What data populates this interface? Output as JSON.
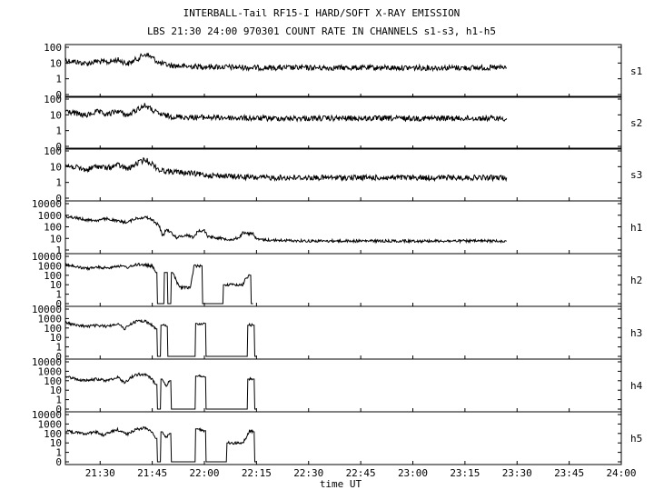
{
  "title": "INTERBALL-Tail RF15-I HARD/SOFT X-RAY EMISSION",
  "subtitle": "LBS 21:30 24:00 970301  COUNT RATE IN CHANNELS s1-s3, h1-h5",
  "xlabel": "time UT",
  "chart_data": {
    "type": "line",
    "title": "INTERBALL-Tail RF15-I HARD/SOFT X-RAY EMISSION",
    "subtitle": "LBS 21:30 24:00 970301  COUNT RATE IN CHANNELS s1-s3, h1-h5",
    "xlabel": "time UT",
    "xlim": [
      "21:20",
      "24:00"
    ],
    "x_ticks": [
      "21:30",
      "21:45",
      "22:00",
      "22:15",
      "22:30",
      "22:45",
      "23:00",
      "23:15",
      "23:30",
      "23:45",
      "24:00"
    ],
    "yscale": "log",
    "line_color": "#000000",
    "grid": false,
    "series": [
      {
        "name": "s1",
        "y_ticks": [
          "100",
          "10",
          "1",
          "0"
        ],
        "points": [
          [
            "21:20",
            15
          ],
          [
            "21:23",
            12
          ],
          [
            "21:26",
            9
          ],
          [
            "21:29",
            13
          ],
          [
            "21:32",
            11
          ],
          [
            "21:35",
            16
          ],
          [
            "21:38",
            9
          ],
          [
            "21:41",
            20
          ],
          [
            "21:43",
            38
          ],
          [
            "21:45",
            22
          ],
          [
            "21:47",
            10
          ],
          [
            "21:50",
            7
          ],
          [
            "21:55",
            6
          ],
          [
            "22:00",
            6
          ],
          [
            "22:15",
            5
          ],
          [
            "22:30",
            5
          ],
          [
            "22:45",
            5
          ],
          [
            "23:00",
            5
          ],
          [
            "23:15",
            5
          ],
          [
            "23:27",
            5
          ]
        ]
      },
      {
        "name": "s2",
        "y_ticks": [
          "100",
          "10",
          "1",
          "0"
        ],
        "points": [
          [
            "21:20",
            18
          ],
          [
            "21:23",
            12
          ],
          [
            "21:26",
            9
          ],
          [
            "21:29",
            16
          ],
          [
            "21:32",
            10
          ],
          [
            "21:35",
            18
          ],
          [
            "21:38",
            9
          ],
          [
            "21:41",
            25
          ],
          [
            "21:43",
            40
          ],
          [
            "21:45",
            20
          ],
          [
            "21:47",
            11
          ],
          [
            "21:50",
            8
          ],
          [
            "21:55",
            7
          ],
          [
            "22:00",
            7
          ],
          [
            "22:15",
            6
          ],
          [
            "22:30",
            6
          ],
          [
            "22:45",
            6
          ],
          [
            "23:00",
            6
          ],
          [
            "23:15",
            6
          ],
          [
            "23:27",
            6
          ]
        ]
      },
      {
        "name": "s3",
        "y_ticks": [
          "100",
          "10",
          "1",
          "0"
        ],
        "points": [
          [
            "21:20",
            12
          ],
          [
            "21:23",
            9
          ],
          [
            "21:26",
            6
          ],
          [
            "21:29",
            11
          ],
          [
            "21:32",
            8
          ],
          [
            "21:35",
            13
          ],
          [
            "21:38",
            7
          ],
          [
            "21:41",
            18
          ],
          [
            "21:43",
            28
          ],
          [
            "21:45",
            15
          ],
          [
            "21:47",
            6
          ],
          [
            "21:50",
            5
          ],
          [
            "21:55",
            4
          ],
          [
            "22:00",
            3
          ],
          [
            "22:15",
            2
          ],
          [
            "22:30",
            2
          ],
          [
            "22:45",
            2
          ],
          [
            "23:00",
            2
          ],
          [
            "23:15",
            2
          ],
          [
            "23:27",
            2
          ]
        ]
      },
      {
        "name": "h1",
        "y_ticks": [
          "10000",
          "1000",
          "100",
          "10",
          "1"
        ],
        "points": [
          [
            "21:20",
            800
          ],
          [
            "21:23",
            600
          ],
          [
            "21:26",
            400
          ],
          [
            "21:29",
            350
          ],
          [
            "21:32",
            500
          ],
          [
            "21:35",
            300
          ],
          [
            "21:38",
            250
          ],
          [
            "21:40",
            500
          ],
          [
            "21:43",
            700
          ],
          [
            "21:45",
            400
          ],
          [
            "21:47",
            120
          ],
          [
            "21:48",
            15
          ],
          [
            "21:49",
            60
          ],
          [
            "21:50",
            40
          ],
          [
            "21:52",
            12
          ],
          [
            "21:55",
            20
          ],
          [
            "21:57",
            12
          ],
          [
            "21:58",
            40
          ],
          [
            "22:00",
            50
          ],
          [
            "22:01",
            15
          ],
          [
            "22:05",
            10
          ],
          [
            "22:08",
            8
          ],
          [
            "22:10",
            12
          ],
          [
            "22:11",
            30
          ],
          [
            "22:13",
            25
          ],
          [
            "22:14",
            30
          ],
          [
            "22:15",
            8
          ],
          [
            "22:20",
            7
          ],
          [
            "22:30",
            6
          ],
          [
            "22:45",
            6
          ],
          [
            "23:00",
            6
          ],
          [
            "23:15",
            6
          ],
          [
            "23:27",
            6
          ]
        ]
      },
      {
        "name": "h2",
        "y_ticks": [
          "10000",
          "1000",
          "100",
          "10",
          "1",
          "0"
        ],
        "points": [
          [
            "21:20",
            1500
          ],
          [
            "21:23",
            800
          ],
          [
            "21:26",
            500
          ],
          [
            "21:29",
            700
          ],
          [
            "21:32",
            600
          ],
          [
            "21:35",
            1000
          ],
          [
            "21:38",
            700
          ],
          [
            "21:41",
            1500
          ],
          [
            "21:43",
            1200
          ],
          [
            "21:45",
            900
          ],
          [
            "21:46",
            200
          ],
          [
            "21:47",
            0
          ],
          [
            "21:48",
            0
          ],
          [
            "21:49",
            200
          ],
          [
            "21:50",
            0
          ],
          [
            "21:51",
            200
          ],
          [
            "21:52",
            20
          ],
          [
            "21:53",
            5
          ],
          [
            "21:56",
            5
          ],
          [
            "21:57",
            1000
          ],
          [
            "21:59",
            1000
          ],
          [
            "22:00",
            0
          ],
          [
            "22:05",
            0
          ],
          [
            "22:06",
            10
          ],
          [
            "22:11",
            10
          ],
          [
            "22:12",
            50
          ],
          [
            "22:13",
            100
          ],
          [
            "22:14",
            0
          ]
        ]
      },
      {
        "name": "h3",
        "y_ticks": [
          "10000",
          "1000",
          "100",
          "10",
          "1",
          "0"
        ],
        "points": [
          [
            "21:20",
            400
          ],
          [
            "21:23",
            200
          ],
          [
            "21:26",
            150
          ],
          [
            "21:29",
            180
          ],
          [
            "21:32",
            150
          ],
          [
            "21:35",
            300
          ],
          [
            "21:37",
            80
          ],
          [
            "21:39",
            300
          ],
          [
            "21:41",
            600
          ],
          [
            "21:43",
            500
          ],
          [
            "21:45",
            200
          ],
          [
            "21:46",
            80
          ],
          [
            "21:47",
            0
          ],
          [
            "21:48",
            200
          ],
          [
            "21:49",
            150
          ],
          [
            "21:50",
            0
          ],
          [
            "21:57",
            0
          ],
          [
            "21:58",
            300
          ],
          [
            "22:00",
            300
          ],
          [
            "22:01",
            0
          ],
          [
            "22:12",
            0
          ],
          [
            "22:13",
            200
          ],
          [
            "22:14",
            200
          ],
          [
            "22:15",
            0
          ]
        ]
      },
      {
        "name": "h4",
        "y_ticks": [
          "10000",
          "1000",
          "100",
          "10",
          "1",
          "0"
        ],
        "points": [
          [
            "21:20",
            300
          ],
          [
            "21:23",
            150
          ],
          [
            "21:26",
            100
          ],
          [
            "21:29",
            150
          ],
          [
            "21:32",
            100
          ],
          [
            "21:35",
            250
          ],
          [
            "21:37",
            60
          ],
          [
            "21:39",
            250
          ],
          [
            "21:41",
            500
          ],
          [
            "21:43",
            400
          ],
          [
            "21:45",
            150
          ],
          [
            "21:46",
            40
          ],
          [
            "21:47",
            0
          ],
          [
            "21:48",
            150
          ],
          [
            "21:49",
            30
          ],
          [
            "21:50",
            100
          ],
          [
            "21:51",
            0
          ],
          [
            "21:57",
            0
          ],
          [
            "21:58",
            300
          ],
          [
            "22:00",
            250
          ],
          [
            "22:01",
            0
          ],
          [
            "22:12",
            0
          ],
          [
            "22:13",
            150
          ],
          [
            "22:14",
            150
          ],
          [
            "22:15",
            0
          ]
        ]
      },
      {
        "name": "h5",
        "y_ticks": [
          "10000",
          "1000",
          "100",
          "10",
          "1",
          "0"
        ],
        "points": [
          [
            "21:20",
            200
          ],
          [
            "21:23",
            120
          ],
          [
            "21:26",
            100
          ],
          [
            "21:29",
            150
          ],
          [
            "21:31",
            60
          ],
          [
            "21:33",
            150
          ],
          [
            "21:35",
            250
          ],
          [
            "21:38",
            80
          ],
          [
            "21:40",
            250
          ],
          [
            "21:43",
            400
          ],
          [
            "21:45",
            150
          ],
          [
            "21:46",
            30
          ],
          [
            "21:47",
            0
          ],
          [
            "21:48",
            150
          ],
          [
            "21:49",
            30
          ],
          [
            "21:50",
            100
          ],
          [
            "21:51",
            0
          ],
          [
            "21:57",
            0
          ],
          [
            "21:58",
            300
          ],
          [
            "22:00",
            200
          ],
          [
            "22:01",
            0
          ],
          [
            "22:06",
            0
          ],
          [
            "22:07",
            10
          ],
          [
            "22:11",
            10
          ],
          [
            "22:12",
            30
          ],
          [
            "22:13",
            200
          ],
          [
            "22:14",
            150
          ],
          [
            "22:15",
            0
          ]
        ]
      }
    ]
  }
}
